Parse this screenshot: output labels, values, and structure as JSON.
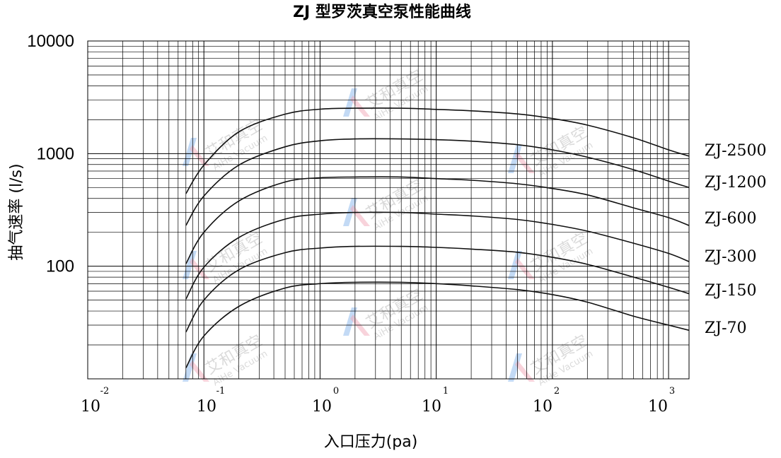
{
  "chart_data": {
    "type": "line",
    "title": "ZJ 型罗茨真空泵性能曲线",
    "xlabel": "入口压力(pa)",
    "ylabel": "抽气速率 (l/s)",
    "x_scale": "log",
    "y_scale": "log",
    "xlim": [
      0.01,
      1500
    ],
    "ylim": [
      10,
      10000
    ],
    "grid": true,
    "x_ticks": [
      {
        "base": "10",
        "exp": "-2"
      },
      {
        "base": "10",
        "exp": "-1"
      },
      {
        "base": "10",
        "exp": "0"
      },
      {
        "base": "10",
        "exp": "1"
      },
      {
        "base": "10",
        "exp": "2"
      },
      {
        "base": "10",
        "exp": "3"
      }
    ],
    "y_ticks": [
      "10000",
      "1000",
      "100"
    ],
    "x": [
      0.07,
      0.1,
      0.2,
      0.5,
      1,
      2,
      5,
      10,
      20,
      50,
      100,
      200,
      500,
      1000,
      1500
    ],
    "series": [
      {
        "name": "ZJ-2500",
        "values": [
          440,
          790,
          1560,
          2240,
          2480,
          2530,
          2530,
          2470,
          2400,
          2250,
          2050,
          1790,
          1380,
          1080,
          950
        ]
      },
      {
        "name": "ZJ-1200",
        "values": [
          230,
          420,
          790,
          1150,
          1300,
          1350,
          1350,
          1330,
          1290,
          1200,
          1080,
          930,
          720,
          570,
          500
        ]
      },
      {
        "name": "ZJ-600",
        "values": [
          105,
          200,
          380,
          560,
          610,
          620,
          620,
          600,
          580,
          540,
          490,
          430,
          330,
          270,
          230
        ]
      },
      {
        "name": "ZJ-300",
        "values": [
          51,
          98,
          180,
          262,
          290,
          300,
          300,
          290,
          280,
          260,
          235,
          205,
          160,
          130,
          110
        ]
      },
      {
        "name": "ZJ-150",
        "values": [
          26,
          50,
          93,
          132,
          145,
          150,
          150,
          147,
          142,
          133,
          120,
          104,
          80,
          65,
          57
        ]
      },
      {
        "name": "ZJ-70",
        "values": [
          12.5,
          24,
          44,
          64,
          70,
          72,
          72,
          70,
          67,
          62,
          56,
          48,
          36,
          30,
          27
        ]
      }
    ]
  },
  "watermark": {
    "logo_text": "艾和真空",
    "logo_sub": "AiHe Vacuum",
    "colors": [
      "#7aaee8",
      "#f2a8b8"
    ]
  }
}
